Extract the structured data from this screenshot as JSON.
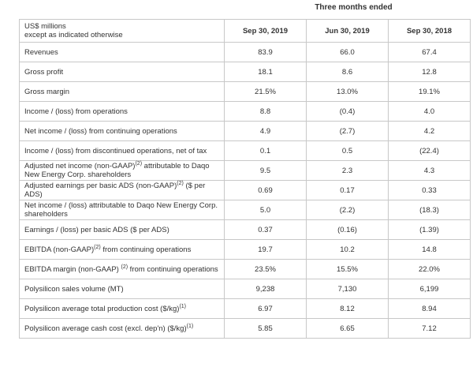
{
  "period_heading": "Three months ended",
  "header": {
    "units_line1": "US$ millions",
    "units_line2": "except as indicated otherwise",
    "columns": [
      "Sep 30, 2019",
      "Jun 30, 2019",
      "Sep 30, 2018"
    ]
  },
  "rows": [
    {
      "label": "Revenues",
      "values": [
        "83.9",
        "66.0",
        "67.4"
      ]
    },
    {
      "label": "Gross profit",
      "values": [
        "18.1",
        "8.6",
        "12.8"
      ]
    },
    {
      "label": "Gross margin",
      "values": [
        "21.5%",
        "13.0%",
        "19.1%"
      ]
    },
    {
      "label": "Income / (loss) from operations",
      "values": [
        "8.8",
        "(0.4)",
        "4.0"
      ]
    },
    {
      "label": "Net income / (loss) from continuing operations",
      "values": [
        "4.9",
        "(2.7)",
        "4.2"
      ]
    },
    {
      "label": "Income / (loss) from discontinued operations, net of tax",
      "values": [
        "0.1",
        "0.5",
        "(22.4)"
      ]
    },
    {
      "label_pre": "Adjusted net income (non-GAAP)",
      "label_sup": "(2)",
      "label_post": " attributable to Daqo New Energy Corp. shareholders",
      "values": [
        "9.5",
        "2.3",
        "4.3"
      ]
    },
    {
      "label_pre": "Adjusted earnings per basic ADS (non-GAAP)",
      "label_sup": "(2)",
      "label_post": " ($ per ADS)",
      "values": [
        "0.69",
        "0.17",
        "0.33"
      ]
    },
    {
      "label": "Net income / (loss) attributable to Daqo New Energy Corp. shareholders",
      "values": [
        "5.0",
        "(2.2)",
        "(18.3)"
      ]
    },
    {
      "label": "Earnings / (loss) per basic ADS ($ per ADS)",
      "values": [
        "0.37",
        "(0.16)",
        "(1.39)"
      ]
    },
    {
      "label_pre": "EBITDA (non-GAAP)",
      "label_sup": "(2)",
      "label_post": " from continuing operations",
      "values": [
        "19.7",
        "10.2",
        "14.8"
      ]
    },
    {
      "label_pre": "EBITDA margin (non-GAAP) ",
      "label_sup": "(2)",
      "label_post": " from continuing operations",
      "values": [
        "23.5%",
        "15.5%",
        "22.0%"
      ]
    },
    {
      "label": "Polysilicon sales volume (MT)",
      "values": [
        "9,238",
        "7,130",
        "6,199"
      ]
    },
    {
      "label_pre": "Polysilicon average total production cost ($/kg)",
      "label_sup": "(1)",
      "label_post": "",
      "values": [
        "6.97",
        "8.12",
        "8.94"
      ]
    },
    {
      "label_pre": "Polysilicon average cash cost (excl. dep'n) ($/kg)",
      "label_sup": "(1)",
      "label_post": "",
      "values": [
        "5.85",
        "6.65",
        "7.12"
      ]
    }
  ]
}
